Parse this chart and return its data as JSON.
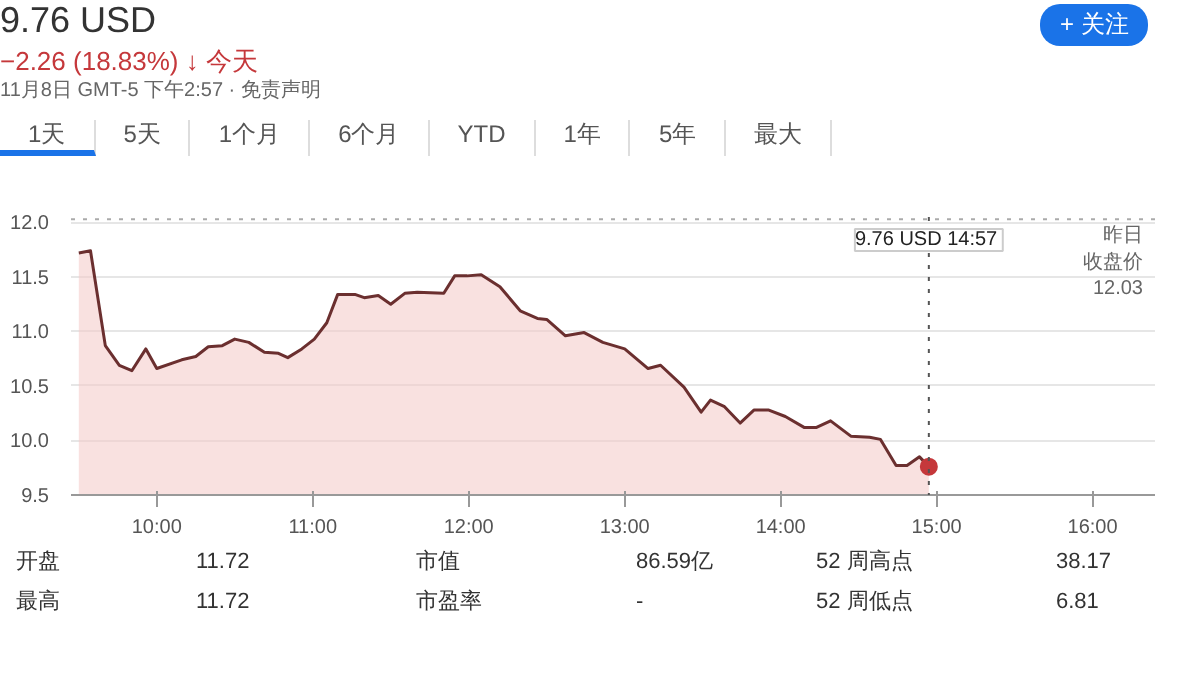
{
  "chart_data": {
    "type": "area",
    "title": "9.76 USD",
    "subtitle": "−2.26 (18.83%) ↓ 今天",
    "annotations": [
      "11月8日 GMT-5 下午2:57 · 免责声明",
      "1天",
      "5天",
      "1个月",
      "6个月",
      "YTD",
      "1年",
      "5年",
      "最大",
      "+ 关注",
      "9.76 USD  14:57",
      "开盘",
      "11.72",
      "市值",
      "86.59亿",
      "52 周高点",
      "38.17",
      "最高",
      "11.72",
      "市盈率",
      "-",
      "52 周低点",
      "6.81"
    ],
    "x": [
      9.5,
      9.575,
      9.67,
      9.76,
      9.84,
      9.93,
      10.0,
      10.16,
      10.25,
      10.33,
      10.42,
      10.5,
      10.59,
      10.69,
      10.78,
      10.84,
      10.93,
      11.01,
      11.09,
      11.16,
      11.27,
      11.33,
      11.42,
      11.5,
      11.59,
      11.67,
      11.84,
      11.91,
      11.99,
      12.08,
      12.2,
      12.33,
      12.44,
      12.5,
      12.62,
      12.74,
      12.86,
      13.0,
      13.15,
      13.23,
      13.38,
      13.49,
      13.55,
      13.64,
      13.74,
      13.83,
      13.92,
      14.03,
      14.15,
      14.23,
      14.32,
      14.45,
      14.57,
      14.64,
      14.74,
      14.81,
      14.89,
      14.95
    ],
    "series": [
      {
        "color": "#6b2f2f",
        "values": [
          11.72,
          11.74,
          10.87,
          10.69,
          10.64,
          10.84,
          10.66,
          10.74,
          10.77,
          10.86,
          10.87,
          10.93,
          10.9,
          10.81,
          10.8,
          10.76,
          10.84,
          10.93,
          11.08,
          11.34,
          11.34,
          11.31,
          11.33,
          11.25,
          11.35,
          11.36,
          11.35,
          11.51,
          11.51,
          11.52,
          11.41,
          11.19,
          11.12,
          11.11,
          10.96,
          10.99,
          10.9,
          10.84,
          10.66,
          10.69,
          10.49,
          10.26,
          10.37,
          10.31,
          10.16,
          10.28,
          10.28,
          10.22,
          10.12,
          10.12,
          10.18,
          10.04,
          10.03,
          10.01,
          9.77,
          9.77,
          9.85,
          9.76
        ]
      },
      {
        "type": "scatter",
        "color": "#c5383b",
        "x": [
          14.95
        ],
        "values": [
          9.76
        ]
      }
    ],
    "xlim": [
      9.45,
      16.4
    ],
    "ylim": [
      9.5,
      12.05
    ],
    "xticks": [
      {
        "value": 10,
        "label": "10:00"
      },
      {
        "value": 11,
        "label": "11:00"
      },
      {
        "value": 12,
        "label": "12:00"
      },
      {
        "value": 13,
        "label": "13:00"
      },
      {
        "value": 14,
        "label": "14:00"
      },
      {
        "value": 15,
        "label": "15:00"
      },
      {
        "value": 16,
        "label": "16:00"
      }
    ],
    "yticks": [
      9.5,
      {
        "value": 10,
        "label": "10.0"
      },
      10.5,
      {
        "value": 11,
        "label": "11.0"
      },
      11.5,
      {
        "value": 12,
        "label": "12.0"
      }
    ],
    "ref_lines": [
      {
        "axis": "y",
        "value": 12.03,
        "label": "昨日收盘价12.03",
        "line_style": "dotted",
        "color": "#aaaaaa"
      },
      {
        "axis": "x",
        "value": 14.95,
        "label": null,
        "line_style": "dotted",
        "color": "#555555"
      }
    ],
    "grid": "y"
  }
}
